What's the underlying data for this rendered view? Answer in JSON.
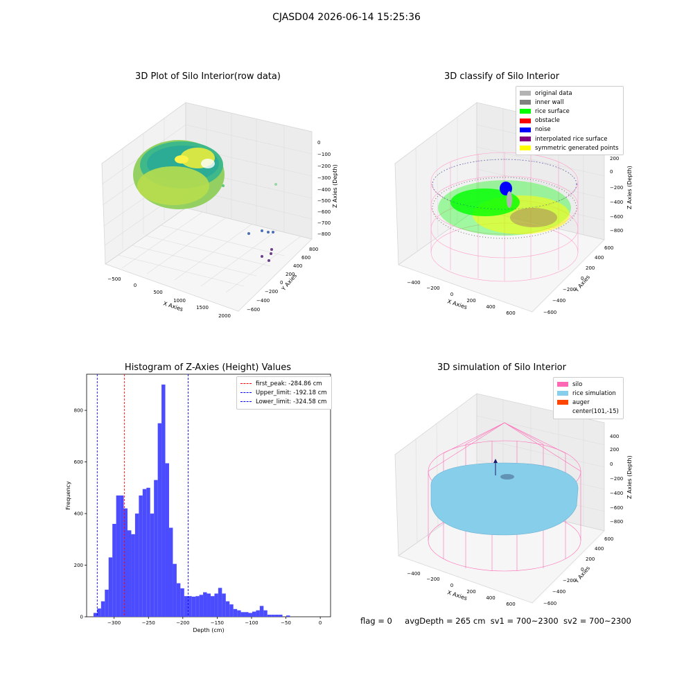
{
  "figure": {
    "suptitle": "CJASD04 2026-06-14 15:25:36",
    "status": {
      "flag": "flag = 0",
      "avg_depth": "avgDepth = 265 cm",
      "sv1": "sv1 = 700~2300",
      "sv2": "sv2 = 700~2300"
    }
  },
  "colors": {
    "hist_bar": "#4c4cff",
    "first_peak": "#ff0000",
    "limits": "#0000ff",
    "original_data": "#b3b3b3",
    "inner_wall": "#808080",
    "rice_surface": "#00ff00",
    "obstacle": "#ff0000",
    "noise": "#0000ff",
    "interpolated": "#800080",
    "symmetric": "#ffff00",
    "silo": "#ff69b4",
    "rice_sim": "#87ceeb",
    "auger": "#ff4500"
  },
  "chart_data": [
    {
      "type": "scatter",
      "title": "3D Plot of Silo Interior(row data)",
      "xlabel": "X Axies",
      "ylabel": "Y Axies",
      "zlabel": "Z Axies (Depth)",
      "x_ticks": [
        "−500",
        "0",
        "500",
        "1000",
        "1500",
        "2000"
      ],
      "y_ticks": [
        "800",
        "600",
        "400",
        "200",
        "0",
        "−200",
        "−400",
        "−600"
      ],
      "z_ticks": [
        "0",
        "−100",
        "−200",
        "−300",
        "−400",
        "−500",
        "−600",
        "−700",
        "−800"
      ]
    },
    {
      "type": "scatter",
      "title": "3D classify of Silo Interior",
      "xlabel": "X Axies",
      "ylabel": "Y Axies",
      "zlabel": "Z Axies (Depth)",
      "x_ticks": [
        "−400",
        "−200",
        "0",
        "200",
        "400",
        "600"
      ],
      "y_ticks": [
        "600",
        "400",
        "200",
        "0",
        "−200",
        "−400",
        "−600"
      ],
      "z_ticks": [
        "400",
        "200",
        "0",
        "−200",
        "−400",
        "−600",
        "−800"
      ],
      "legend": [
        "original data",
        "inner wall",
        "rice surface",
        "obstacle",
        "noise",
        "interpolated rice surface",
        "symmetric generated points"
      ]
    },
    {
      "type": "bar",
      "title": "Histogram of Z-Axies (Height) Values",
      "xlabel": "Depth (cm)",
      "ylabel": "Frequency",
      "xlim": [
        -340,
        15
      ],
      "ylim": [
        0,
        940
      ],
      "x_ticks": [
        -300,
        -250,
        -200,
        -150,
        -100,
        -50,
        0
      ],
      "x_tick_labels": [
        "−300",
        "−250",
        "−200",
        "−150",
        "−100",
        "−50",
        "0"
      ],
      "y_ticks": [
        0,
        200,
        400,
        600,
        800
      ],
      "y_tick_labels": [
        "0",
        "200",
        "400",
        "600",
        "800"
      ],
      "bin_start": -330,
      "bin_width": 5.5,
      "values": [
        15,
        32,
        60,
        105,
        230,
        360,
        470,
        470,
        420,
        335,
        320,
        400,
        470,
        495,
        500,
        400,
        530,
        750,
        900,
        595,
        345,
        205,
        130,
        110,
        80,
        80,
        78,
        80,
        85,
        95,
        90,
        80,
        90,
        112,
        90,
        60,
        48,
        30,
        25,
        18,
        18,
        15,
        20,
        25,
        42,
        25,
        8,
        8,
        8,
        8,
        0,
        5
      ],
      "vlines": [
        {
          "name": "first_peak: -284.86 cm",
          "x": -284.86,
          "color": "#ff0000"
        },
        {
          "name": "Upper_limit: -192.18 cm",
          "x": -192.18,
          "color": "#0000ff"
        },
        {
          "name": "Lower_limit: -324.58 cm",
          "x": -324.58,
          "color": "#0000ff"
        }
      ]
    },
    {
      "type": "scatter",
      "title": "3D simulation of Silo Interior",
      "xlabel": "X Axies",
      "ylabel": "Y Axies",
      "zlabel": "Z Axies (Depth)",
      "x_ticks": [
        "−400",
        "−200",
        "0",
        "200",
        "400",
        "600"
      ],
      "y_ticks": [
        "600",
        "400",
        "200",
        "0",
        "−200",
        "−400",
        "−600"
      ],
      "z_ticks": [
        "400",
        "200",
        "0",
        "−200",
        "−400",
        "−600",
        "−800"
      ],
      "legend": [
        "silo",
        "rice simulation",
        "auger",
        "center(101,-15)"
      ]
    }
  ]
}
